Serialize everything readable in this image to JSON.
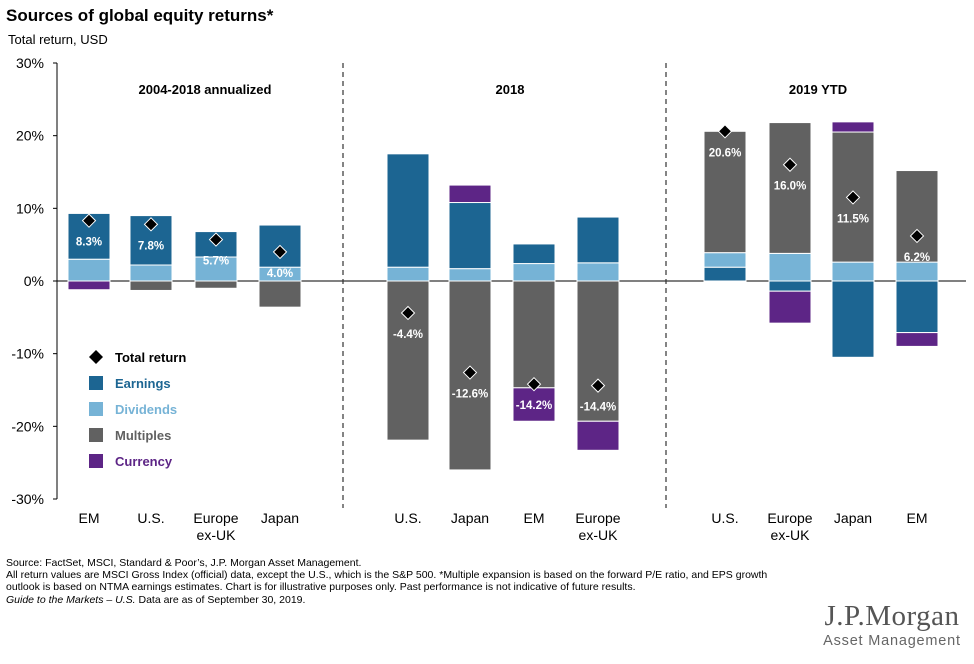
{
  "header": {
    "title": "Sources of global equity returns*",
    "subtitle": "Total return, USD"
  },
  "colors": {
    "earnings": "#1c6592",
    "dividends": "#76b3d6",
    "multiples": "#616161",
    "currency": "#5d2586",
    "total_return_marker": "#000000"
  },
  "chart_data": {
    "type": "bar",
    "stacked": true,
    "ylim": [
      -30,
      30
    ],
    "yticks": [
      "30%",
      "20%",
      "10%",
      "0%",
      "-10%",
      "-20%",
      "-30%"
    ],
    "grid": false,
    "legend": {
      "placement": "bottom-left",
      "entries": [
        {
          "key": "total",
          "label": "Total return",
          "marker": "diamond"
        },
        {
          "key": "earnings",
          "label": "Earnings",
          "marker": "square"
        },
        {
          "key": "dividends",
          "label": "Dividends",
          "marker": "square"
        },
        {
          "key": "multiples",
          "label": "Multiples",
          "marker": "square"
        },
        {
          "key": "currency",
          "label": "Currency",
          "marker": "square"
        }
      ]
    },
    "groups": [
      {
        "title": "2004-2018 annualized",
        "bars": [
          {
            "category": "EM",
            "total": 8.3,
            "total_label": "8.3%",
            "segments": [
              {
                "component": "dividends",
                "from": 0,
                "to": 3.0
              },
              {
                "component": "earnings",
                "from": 3.0,
                "to": 9.3
              },
              {
                "component": "currency",
                "from": 0,
                "to": -1.2
              }
            ]
          },
          {
            "category": "U.S.",
            "total": 7.8,
            "total_label": "7.8%",
            "segments": [
              {
                "component": "dividends",
                "from": 0,
                "to": 2.2
              },
              {
                "component": "earnings",
                "from": 2.2,
                "to": 9.0
              },
              {
                "component": "multiples",
                "from": 0,
                "to": -1.3
              }
            ]
          },
          {
            "category": "Europe\nex-UK",
            "total": 5.7,
            "total_label": "5.7%",
            "segments": [
              {
                "component": "dividends",
                "from": 0,
                "to": 3.3
              },
              {
                "component": "earnings",
                "from": 3.3,
                "to": 6.8
              },
              {
                "component": "multiples",
                "from": 0,
                "to": -1.0
              }
            ]
          },
          {
            "category": "Japan",
            "total": 4.0,
            "total_label": "4.0%",
            "segments": [
              {
                "component": "dividends",
                "from": 0,
                "to": 1.9
              },
              {
                "component": "earnings",
                "from": 1.9,
                "to": 7.7
              },
              {
                "component": "multiples",
                "from": 0,
                "to": -3.6
              }
            ]
          }
        ]
      },
      {
        "title": "2018",
        "bars": [
          {
            "category": "U.S.",
            "total": -4.4,
            "total_label": "-4.4%",
            "segments": [
              {
                "component": "dividends",
                "from": 0,
                "to": 1.9
              },
              {
                "component": "earnings",
                "from": 1.9,
                "to": 17.5
              },
              {
                "component": "multiples",
                "from": 0,
                "to": -21.9
              }
            ]
          },
          {
            "category": "Japan",
            "total": -12.6,
            "total_label": "-12.6%",
            "segments": [
              {
                "component": "dividends",
                "from": 0,
                "to": 1.7
              },
              {
                "component": "earnings",
                "from": 1.7,
                "to": 10.8
              },
              {
                "component": "currency",
                "from": 10.8,
                "to": 13.2
              },
              {
                "component": "multiples",
                "from": 0,
                "to": -26.0
              }
            ]
          },
          {
            "category": "EM",
            "total": -14.2,
            "total_label": "-14.2%",
            "segments": [
              {
                "component": "dividends",
                "from": 0,
                "to": 2.4
              },
              {
                "component": "earnings",
                "from": 2.4,
                "to": 5.1
              },
              {
                "component": "multiples",
                "from": 0,
                "to": -14.7
              },
              {
                "component": "currency",
                "from": -14.7,
                "to": -19.3
              }
            ]
          },
          {
            "category": "Europe\nex-UK",
            "total": -14.4,
            "total_label": "-14.4%",
            "segments": [
              {
                "component": "dividends",
                "from": 0,
                "to": 2.5
              },
              {
                "component": "earnings",
                "from": 2.5,
                "to": 8.8
              },
              {
                "component": "multiples",
                "from": 0,
                "to": -19.3
              },
              {
                "component": "currency",
                "from": -19.3,
                "to": -23.3
              }
            ]
          }
        ]
      },
      {
        "title": "2019 YTD",
        "bars": [
          {
            "category": "U.S.",
            "total": 20.6,
            "total_label": "20.6%",
            "segments": [
              {
                "component": "earnings",
                "from": 0,
                "to": 1.9
              },
              {
                "component": "dividends",
                "from": 1.9,
                "to": 3.9
              },
              {
                "component": "multiples",
                "from": 3.9,
                "to": 20.6
              }
            ]
          },
          {
            "category": "Europe\nex-UK",
            "total": 16.0,
            "total_label": "16.0%",
            "segments": [
              {
                "component": "dividends",
                "from": 0,
                "to": 3.8
              },
              {
                "component": "multiples",
                "from": 3.8,
                "to": 21.8
              },
              {
                "component": "earnings",
                "from": 0,
                "to": -1.4
              },
              {
                "component": "currency",
                "from": -1.4,
                "to": -5.8
              }
            ]
          },
          {
            "category": "Japan",
            "total": 11.5,
            "total_label": "11.5%",
            "segments": [
              {
                "component": "dividends",
                "from": 0,
                "to": 2.6
              },
              {
                "component": "multiples",
                "from": 2.6,
                "to": 20.5
              },
              {
                "component": "currency",
                "from": 20.5,
                "to": 21.9
              },
              {
                "component": "earnings",
                "from": 0,
                "to": -10.5
              }
            ]
          },
          {
            "category": "EM",
            "total": 6.2,
            "total_label": "6.2%",
            "segments": [
              {
                "component": "dividends",
                "from": 0,
                "to": 2.6
              },
              {
                "component": "multiples",
                "from": 2.6,
                "to": 15.2
              },
              {
                "component": "earnings",
                "from": 0,
                "to": -7.1
              },
              {
                "component": "currency",
                "from": -7.1,
                "to": -9.0
              }
            ]
          }
        ]
      }
    ]
  },
  "footnotes": {
    "source": "Source: FactSet, MSCI, Standard & Poor’s, J.P. Morgan Asset Management.",
    "note": "All return values are MSCI Gross Index (official) data, except the U.S., which is the S&P 500. *Multiple expansion is based on the forward P/E ratio, and EPS growth outlook is based on NTMA earnings estimates. Chart is for illustrative purposes only. Past performance is not indicative of future results.",
    "guide_italic": "Guide to the Markets – U.S.",
    "guide_rest": " Data are as of September 30, 2019."
  },
  "logo": {
    "brand": "J.P.Morgan",
    "sub": "Asset Management"
  }
}
